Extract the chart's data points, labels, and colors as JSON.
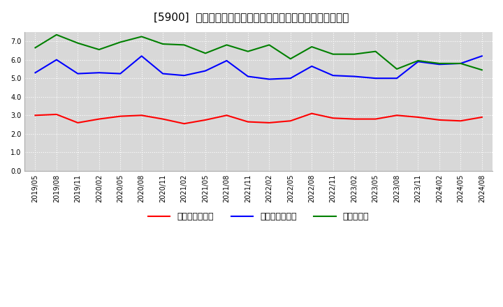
{
  "title": "[5900]  売上債権回転率、買入債務回転率、在庫回転率の推移",
  "x_labels": [
    "2019/05",
    "2019/08",
    "2019/11",
    "2020/02",
    "2020/05",
    "2020/08",
    "2020/11",
    "2021/02",
    "2021/05",
    "2021/08",
    "2021/11",
    "2022/02",
    "2022/05",
    "2022/08",
    "2022/11",
    "2023/02",
    "2023/05",
    "2023/08",
    "2023/11",
    "2024/02",
    "2024/05",
    "2024/08"
  ],
  "uri_rate": [
    3.0,
    3.05,
    2.6,
    2.8,
    2.95,
    3.0,
    2.8,
    2.55,
    2.75,
    3.0,
    2.65,
    2.6,
    2.7,
    3.1,
    2.85,
    2.8,
    2.8,
    3.0,
    2.9,
    2.75,
    2.7,
    2.9
  ],
  "kai_rate": [
    5.3,
    6.0,
    5.25,
    5.3,
    5.25,
    6.2,
    5.25,
    5.15,
    5.4,
    5.95,
    5.1,
    4.95,
    5.0,
    5.65,
    5.15,
    5.1,
    5.0,
    5.0,
    5.9,
    5.75,
    5.8,
    6.2
  ],
  "zai_rate": [
    6.65,
    7.35,
    6.9,
    6.55,
    6.95,
    7.25,
    6.85,
    6.8,
    6.35,
    6.8,
    6.45,
    6.8,
    6.05,
    6.7,
    6.3,
    6.3,
    6.45,
    5.5,
    5.95,
    5.8,
    5.8,
    5.45
  ],
  "color_uri": "#ff0000",
  "color_kai": "#0000ff",
  "color_zai": "#008000",
  "ylim": [
    0.0,
    7.5
  ],
  "yticks": [
    0.0,
    1.0,
    2.0,
    3.0,
    4.0,
    5.0,
    6.0,
    7.0
  ],
  "legend_uri": "売上債権回転率",
  "legend_kai": "買入債務回転率",
  "legend_zai": "在庫回転率",
  "bg_color": "#ffffff",
  "plot_bg_color": "#d8d8d8",
  "grid_color": "#ffffff",
  "title_fontsize": 11,
  "tick_fontsize": 7,
  "legend_fontsize": 9
}
